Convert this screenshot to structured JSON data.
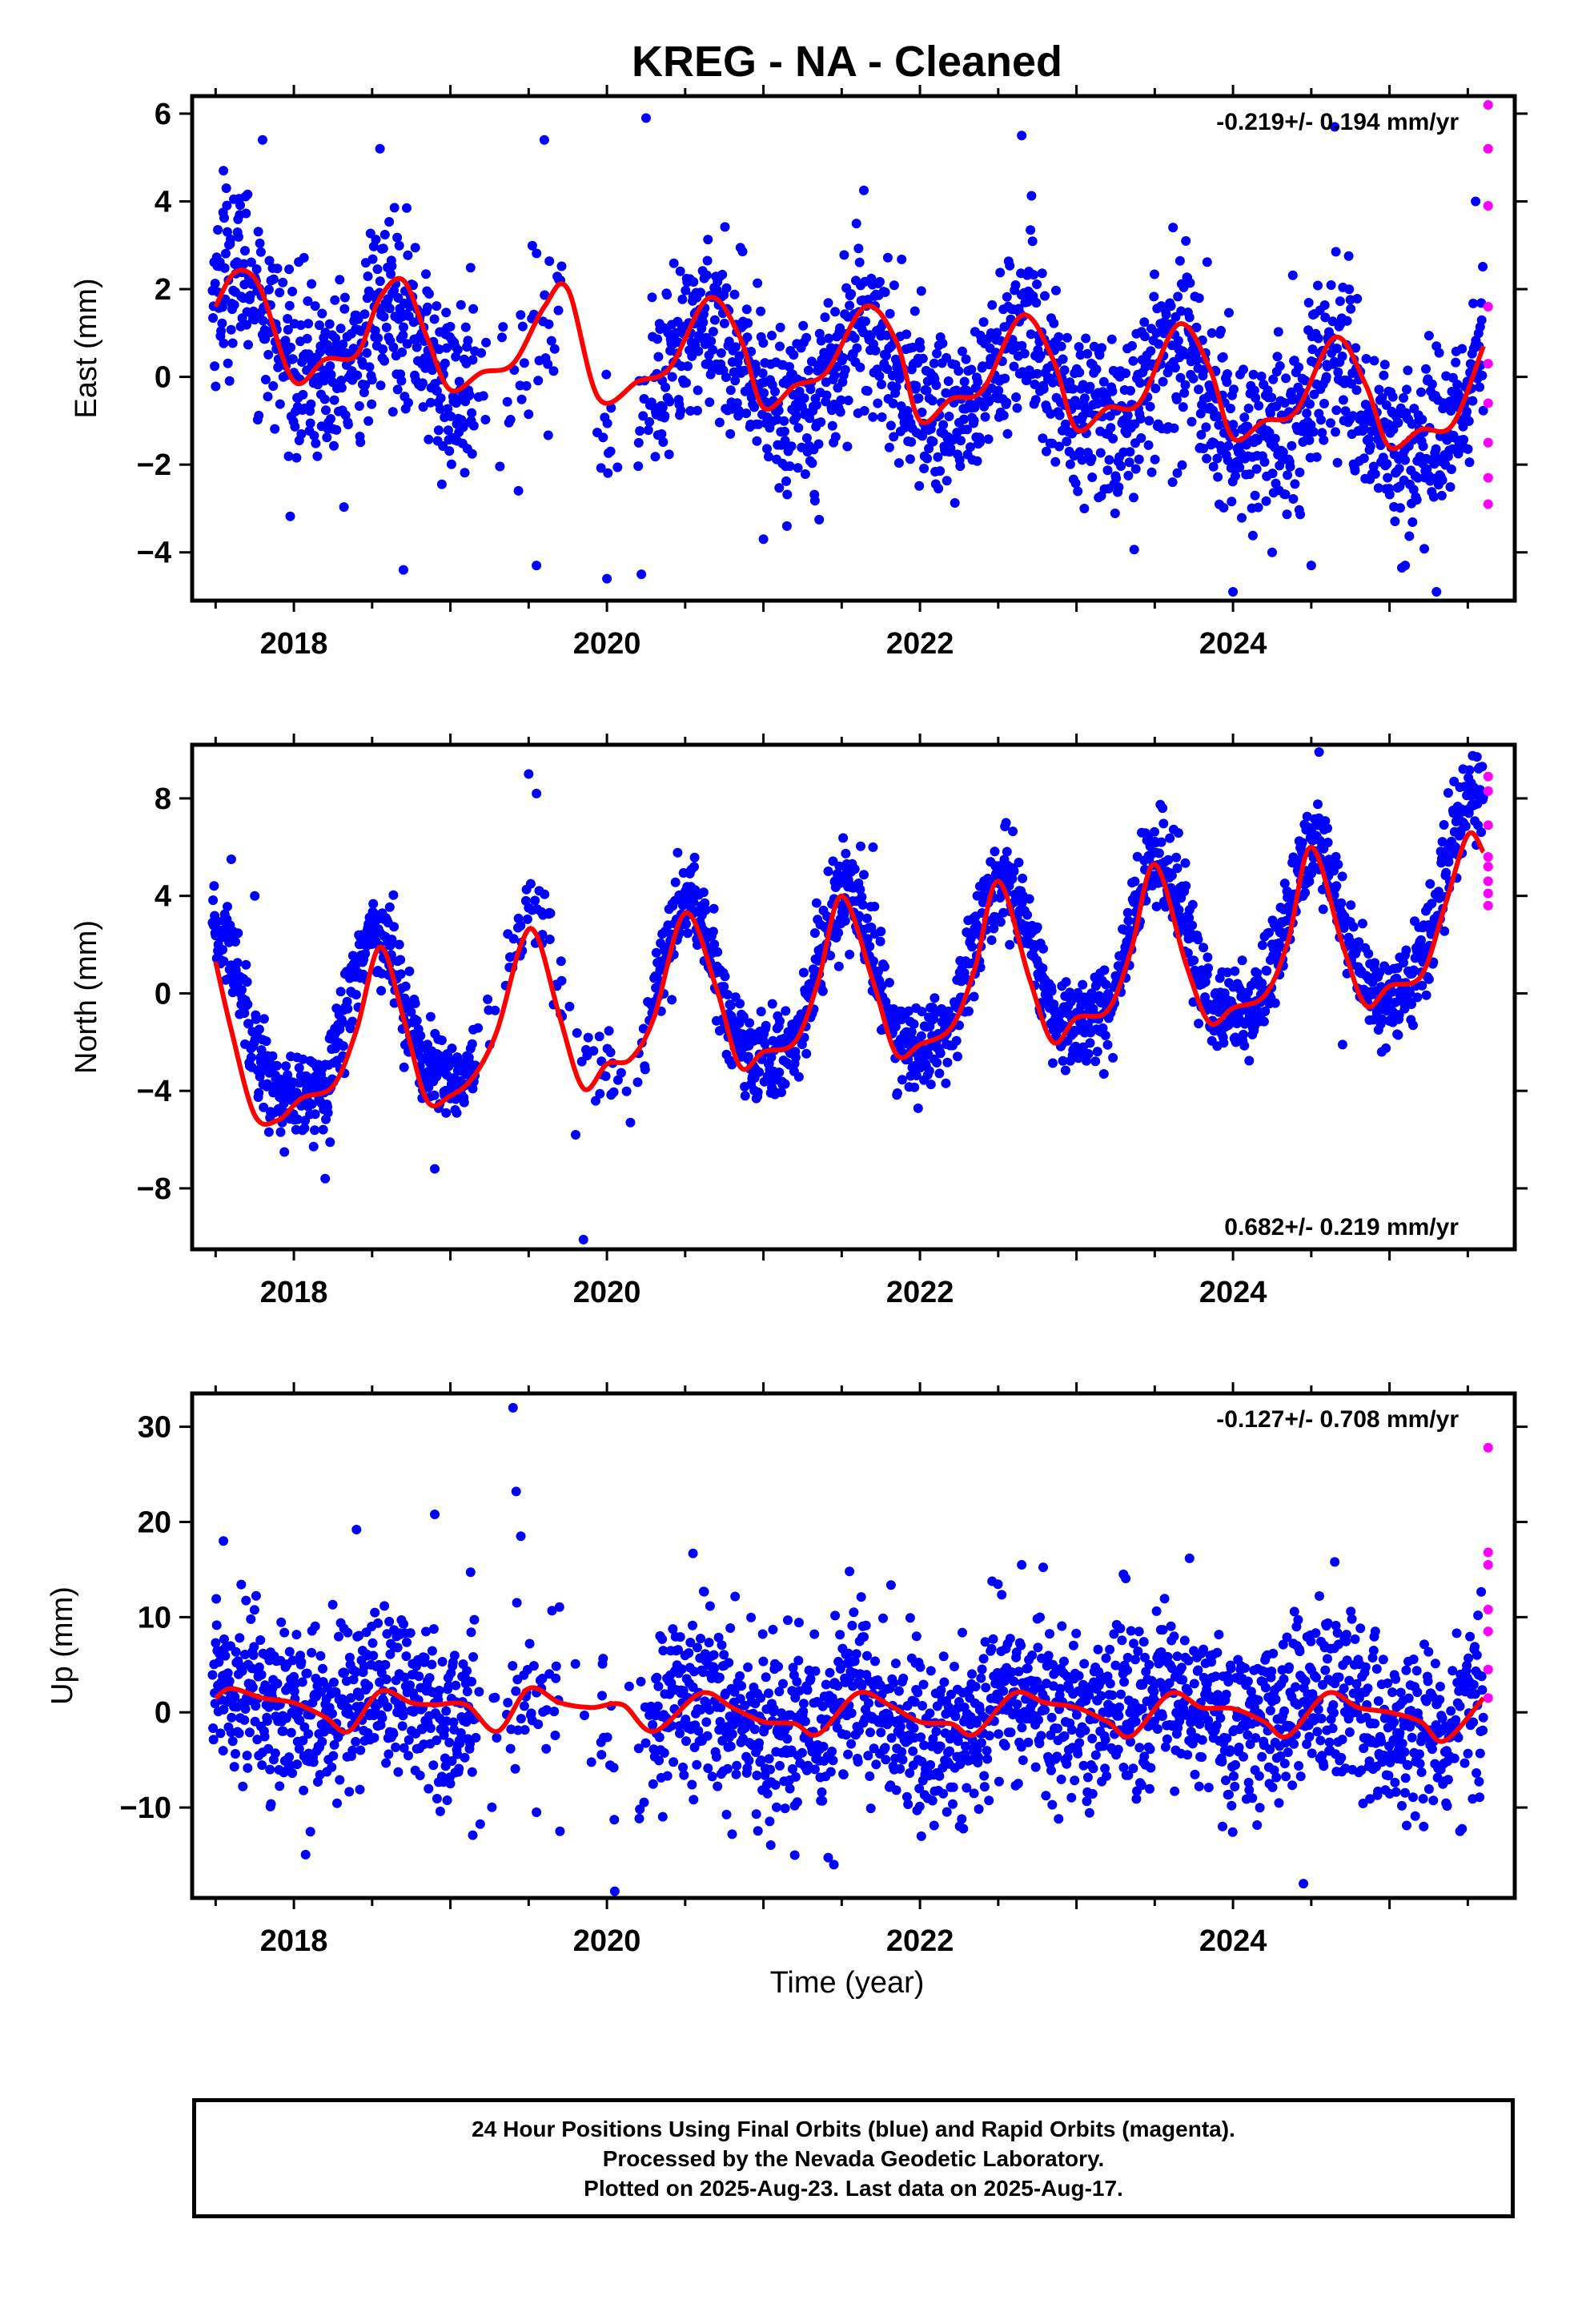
{
  "title": "KREG  - NA - Cleaned",
  "xlabel": "Time (year)",
  "colors": {
    "final": "#0000ff",
    "rapid": "#ff00ff",
    "fit": "#ff0000",
    "axis": "#000000"
  },
  "footer": {
    "line1": "24 Hour Positions Using Final Orbits (blue) and Rapid Orbits (magenta).",
    "line2": "Processed by the Nevada Geodetic Laboratory.",
    "line3": "Plotted on 2025-Aug-23. Last data on 2025-Aug-17."
  },
  "chart_data": [
    {
      "type": "scatter",
      "component": "east",
      "ylabel": "East (mm)",
      "rate_label": "-0.219+/- 0.194 mm/yr",
      "rate_position": "top-right",
      "xlim": [
        2017.35,
        2025.8
      ],
      "ylim": [
        -5.1,
        6.4
      ],
      "xticks": [
        2018,
        2020,
        2022,
        2024
      ],
      "yticks": [
        -4,
        -2,
        0,
        2,
        4,
        6
      ],
      "seasonal": {
        "amplitude": 1.0,
        "peak_phase": 0.65,
        "second_harmonic": 0.25,
        "noise_sd": 1.0
      },
      "trend_segments": {
        "x": [
          2017.5,
          2018.0,
          2019.0,
          2020.0,
          2021.0,
          2022.0,
          2023.0,
          2024.0,
          2025.0,
          2025.6
        ],
        "y": [
          1.4,
          0.9,
          0.3,
          0.0,
          0.2,
          0.0,
          -0.2,
          -0.6,
          -0.9,
          -0.6
        ]
      },
      "fit_curve": {
        "x": [
          2017.5,
          2017.6,
          2017.7,
          2017.8,
          2018.0,
          2018.2,
          2018.4,
          2018.55,
          2018.7,
          2018.85,
          2019.0,
          2019.2,
          2019.4,
          2019.6,
          2019.75,
          2019.95,
          2020.2,
          2020.4,
          2020.65,
          2020.85,
          2021.0,
          2021.2,
          2021.4,
          2021.65,
          2021.85,
          2022.0,
          2022.2,
          2022.4,
          2022.65,
          2022.85,
          2023.0,
          2023.2,
          2023.4,
          2023.65,
          2023.85,
          2024.0,
          2024.2,
          2024.4,
          2024.65,
          2024.85,
          2025.0,
          2025.2,
          2025.4,
          2025.6
        ],
        "y": [
          1.6,
          2.3,
          2.4,
          1.9,
          -0.1,
          0.4,
          0.5,
          1.8,
          2.2,
          0.9,
          -0.3,
          0.1,
          0.3,
          1.6,
          2.0,
          -0.5,
          -0.1,
          0.2,
          1.8,
          0.9,
          -0.7,
          -0.2,
          0.1,
          1.6,
          0.8,
          -1.0,
          -0.5,
          -0.3,
          1.4,
          0.4,
          -1.2,
          -0.7,
          -0.6,
          1.2,
          0.2,
          -1.4,
          -1.0,
          -0.8,
          0.9,
          -0.2,
          -1.6,
          -1.2,
          -1.1,
          0.7
        ]
      },
      "outliers": [
        {
          "x": 2017.8,
          "y": 5.4
        },
        {
          "x": 2018.55,
          "y": 5.2
        },
        {
          "x": 2018.7,
          "y": -4.4
        },
        {
          "x": 2019.6,
          "y": 5.4
        },
        {
          "x": 2019.55,
          "y": -4.3
        },
        {
          "x": 2020.0,
          "y": -4.6
        },
        {
          "x": 2020.25,
          "y": 5.9
        },
        {
          "x": 2020.22,
          "y": -4.5
        },
        {
          "x": 2021.0,
          "y": -3.7
        },
        {
          "x": 2021.15,
          "y": -3.4
        },
        {
          "x": 2022.65,
          "y": 5.5
        },
        {
          "x": 2023.05,
          "y": -3.0
        },
        {
          "x": 2024.0,
          "y": -4.9
        },
        {
          "x": 2024.25,
          "y": -4.0
        },
        {
          "x": 2024.5,
          "y": -4.3
        },
        {
          "x": 2024.65,
          "y": 5.7
        },
        {
          "x": 2025.1,
          "y": -4.3
        },
        {
          "x": 2025.3,
          "y": -4.9
        },
        {
          "x": 2025.55,
          "y": 4.0
        },
        {
          "x": 2017.55,
          "y": 4.7
        }
      ],
      "rapid_points": {
        "x": 2025.63,
        "y": [
          6.2,
          5.2,
          3.9,
          1.6,
          0.3,
          -0.6,
          -1.5,
          -2.3,
          -2.9
        ]
      }
    },
    {
      "type": "scatter",
      "component": "north",
      "ylabel": "North (mm)",
      "rate_label": "0.682+/- 0.219 mm/yr",
      "rate_position": "bottom-right",
      "xlim": [
        2017.35,
        2025.8
      ],
      "ylim": [
        -10.5,
        10.2
      ],
      "xticks": [
        2018,
        2020,
        2022,
        2024
      ],
      "yticks": [
        -8,
        -4,
        0,
        4,
        8
      ],
      "seasonal": {
        "amplitude": 3.3,
        "peak_phase": 0.52,
        "second_harmonic": 0.6,
        "noise_sd": 0.9
      },
      "trend_segments": {
        "x": [
          2017.5,
          2018.0,
          2019.0,
          2020.0,
          2021.0,
          2022.0,
          2023.0,
          2024.0,
          2025.0,
          2025.6
        ],
        "y": [
          -1.5,
          -1.8,
          -0.9,
          -0.4,
          -0.1,
          0.5,
          1.3,
          1.8,
          2.2,
          4.5
        ]
      },
      "fit_curve": {
        "x": [
          2017.5,
          2017.6,
          2017.75,
          2017.9,
          2018.05,
          2018.25,
          2018.4,
          2018.55,
          2018.7,
          2018.85,
          2019.0,
          2019.15,
          2019.3,
          2019.45,
          2019.55,
          2019.7,
          2019.85,
          2020.0,
          2020.15,
          2020.3,
          2020.5,
          2020.7,
          2020.85,
          2021.0,
          2021.2,
          2021.35,
          2021.5,
          2021.7,
          2021.85,
          2022.0,
          2022.2,
          2022.35,
          2022.5,
          2022.7,
          2022.85,
          2023.0,
          2023.2,
          2023.35,
          2023.5,
          2023.7,
          2023.85,
          2024.0,
          2024.2,
          2024.35,
          2024.5,
          2024.7,
          2024.85,
          2025.0,
          2025.2,
          2025.35,
          2025.5,
          2025.6
        ],
        "y": [
          1.3,
          -1.5,
          -5.0,
          -5.2,
          -4.3,
          -3.8,
          -1.5,
          1.9,
          -1.0,
          -4.4,
          -4.2,
          -3.4,
          -1.5,
          2.0,
          2.4,
          -1.0,
          -3.9,
          -2.9,
          -2.7,
          -1.0,
          3.3,
          0.2,
          -3.0,
          -2.4,
          -2.0,
          0.5,
          4.0,
          0.5,
          -2.5,
          -2.1,
          -1.4,
          1.0,
          4.6,
          0.6,
          -2.0,
          -1.0,
          -0.7,
          1.8,
          5.3,
          1.2,
          -1.2,
          -0.6,
          -0.1,
          2.1,
          6.0,
          2.0,
          -0.5,
          0.3,
          0.7,
          3.5,
          6.5,
          5.8
        ]
      },
      "outliers": [
        {
          "x": 2017.6,
          "y": 5.5
        },
        {
          "x": 2017.75,
          "y": 4.0
        },
        {
          "x": 2018.2,
          "y": -7.6
        },
        {
          "x": 2018.9,
          "y": -7.2
        },
        {
          "x": 2019.5,
          "y": 9.0
        },
        {
          "x": 2019.55,
          "y": 8.2
        },
        {
          "x": 2019.85,
          "y": -10.1
        },
        {
          "x": 2019.8,
          "y": -5.8
        },
        {
          "x": 2020.15,
          "y": -5.3
        },
        {
          "x": 2021.7,
          "y": 6.0
        },
        {
          "x": 2022.55,
          "y": 7.0
        },
        {
          "x": 2023.55,
          "y": 7.6
        },
        {
          "x": 2024.55,
          "y": 9.9
        },
        {
          "x": 2024.7,
          "y": -2.1
        },
        {
          "x": 2024.95,
          "y": -2.4
        }
      ],
      "rapid_points": {
        "x": 2025.63,
        "y": [
          8.9,
          8.3,
          6.9,
          5.6,
          5.2,
          4.6,
          4.1,
          3.6
        ]
      }
    },
    {
      "type": "scatter",
      "component": "up",
      "ylabel": "Up (mm)",
      "rate_label": "-0.127+/- 0.708 mm/yr",
      "rate_position": "top-right",
      "xlim": [
        2017.35,
        2025.8
      ],
      "ylim": [
        -19.5,
        33.5
      ],
      "xticks": [
        2018,
        2020,
        2022,
        2024
      ],
      "yticks": [
        -10,
        0,
        10,
        20,
        30
      ],
      "seasonal": {
        "amplitude": 1.9,
        "peak_phase": 0.6,
        "second_harmonic": 0.3,
        "noise_sd": 4.5
      },
      "trend_segments": {
        "x": [
          2017.5,
          2018.0,
          2019.0,
          2020.0,
          2021.0,
          2022.0,
          2023.0,
          2024.0,
          2025.0,
          2025.6
        ],
        "y": [
          1.5,
          1.2,
          0.8,
          0.2,
          -0.6,
          -0.8,
          0.0,
          0.2,
          -0.6,
          -0.2
        ]
      },
      "fit_curve": {
        "x": [
          2017.5,
          2017.6,
          2017.8,
          2018.0,
          2018.2,
          2018.35,
          2018.55,
          2018.75,
          2018.9,
          2019.1,
          2019.3,
          2019.5,
          2019.7,
          2019.9,
          2020.1,
          2020.3,
          2020.6,
          2020.8,
          2021.0,
          2021.2,
          2021.35,
          2021.6,
          2021.8,
          2022.0,
          2022.2,
          2022.35,
          2022.6,
          2022.8,
          2023.0,
          2023.2,
          2023.35,
          2023.6,
          2023.8,
          2024.0,
          2024.2,
          2024.35,
          2024.6,
          2024.8,
          2025.0,
          2025.2,
          2025.35,
          2025.6
        ],
        "y": [
          1.5,
          2.5,
          1.5,
          1.0,
          -0.5,
          -2.0,
          2.2,
          1.0,
          0.8,
          0.8,
          -2.0,
          2.5,
          1.0,
          0.5,
          0.8,
          -2.0,
          2.0,
          0.5,
          -1.0,
          -1.2,
          -2.3,
          2.0,
          0.8,
          -1.0,
          -1.2,
          -2.3,
          2.0,
          1.0,
          0.5,
          -1.0,
          -2.5,
          2.0,
          0.5,
          0.4,
          -1.0,
          -2.5,
          2.0,
          0.5,
          0.0,
          -1.0,
          -3.0,
          1.5
        ]
      },
      "outliers": [
        {
          "x": 2017.55,
          "y": 18.0
        },
        {
          "x": 2017.85,
          "y": -9.9
        },
        {
          "x": 2018.4,
          "y": 19.2
        },
        {
          "x": 2018.9,
          "y": 20.8
        },
        {
          "x": 2019.4,
          "y": 32.0
        },
        {
          "x": 2019.42,
          "y": 23.2
        },
        {
          "x": 2019.45,
          "y": 18.5
        },
        {
          "x": 2019.55,
          "y": -10.5
        },
        {
          "x": 2019.7,
          "y": -12.5
        },
        {
          "x": 2020.05,
          "y": -18.8
        },
        {
          "x": 2020.55,
          "y": 16.7
        },
        {
          "x": 2020.8,
          "y": -12.8
        },
        {
          "x": 2021.2,
          "y": -15.0
        },
        {
          "x": 2021.45,
          "y": -16.0
        },
        {
          "x": 2021.55,
          "y": 14.8
        },
        {
          "x": 2022.65,
          "y": 15.5
        },
        {
          "x": 2023.3,
          "y": 14.5
        },
        {
          "x": 2024.45,
          "y": -18.0
        },
        {
          "x": 2024.65,
          "y": 15.8
        },
        {
          "x": 2025.45,
          "y": -12.5
        }
      ],
      "rapid_points": {
        "x": 2025.63,
        "y": [
          27.8,
          16.8,
          15.5,
          10.8,
          8.5,
          4.5,
          1.5
        ]
      }
    }
  ]
}
